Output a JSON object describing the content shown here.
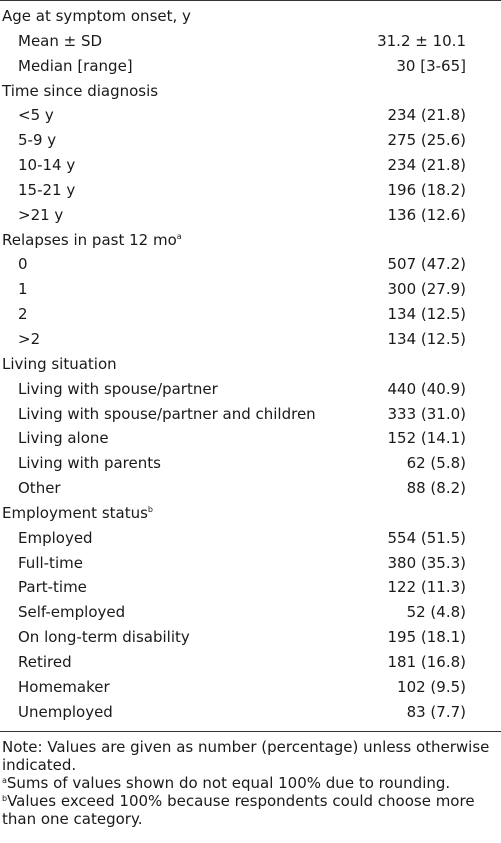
{
  "rows": [
    {
      "kind": "header",
      "label": "Age at symptom onset, y",
      "sup": "",
      "value": ""
    },
    {
      "kind": "item",
      "label": "Mean ± SD",
      "sup": "",
      "value": "31.2 ± 10.1"
    },
    {
      "kind": "item",
      "label": "Median [range]",
      "sup": "",
      "value": "30 [3-65]"
    },
    {
      "kind": "header",
      "label": "Time since diagnosis",
      "sup": "",
      "value": ""
    },
    {
      "kind": "item",
      "label": "<5 y",
      "sup": "",
      "value": "234 (21.8)"
    },
    {
      "kind": "item",
      "label": "5-9 y",
      "sup": "",
      "value": "275 (25.6)"
    },
    {
      "kind": "item",
      "label": "10-14 y",
      "sup": "",
      "value": "234 (21.8)"
    },
    {
      "kind": "item",
      "label": "15-21 y",
      "sup": "",
      "value": "196 (18.2)"
    },
    {
      "kind": "item",
      "label": ">21 y",
      "sup": "",
      "value": "136 (12.6)"
    },
    {
      "kind": "header",
      "label": "Relapses in past 12 mo",
      "sup": "a",
      "value": ""
    },
    {
      "kind": "item",
      "label": "0",
      "sup": "",
      "value": "507 (47.2)"
    },
    {
      "kind": "item",
      "label": "1",
      "sup": "",
      "value": "300 (27.9)"
    },
    {
      "kind": "item",
      "label": "2",
      "sup": "",
      "value": "134 (12.5)"
    },
    {
      "kind": "item",
      "label": ">2",
      "sup": "",
      "value": "134 (12.5)"
    },
    {
      "kind": "header",
      "label": "Living situation",
      "sup": "",
      "value": ""
    },
    {
      "kind": "item",
      "label": "Living with spouse/partner",
      "sup": "",
      "value": "440 (40.9)"
    },
    {
      "kind": "item",
      "label": "Living with spouse/partner and children",
      "sup": "",
      "value": "333 (31.0)"
    },
    {
      "kind": "item",
      "label": "Living alone",
      "sup": "",
      "value": "152 (14.1)"
    },
    {
      "kind": "item",
      "label": "Living with parents",
      "sup": "",
      "value": "62 (5.8)"
    },
    {
      "kind": "item",
      "label": "Other",
      "sup": "",
      "value": "88 (8.2)"
    },
    {
      "kind": "header",
      "label": "Employment status",
      "sup": "b",
      "value": ""
    },
    {
      "kind": "item",
      "label": "Employed",
      "sup": "",
      "value": "554 (51.5)"
    },
    {
      "kind": "item",
      "label": "Full-time",
      "sup": "",
      "value": "380 (35.3)"
    },
    {
      "kind": "item",
      "label": "Part-time",
      "sup": "",
      "value": "122 (11.3)"
    },
    {
      "kind": "item",
      "label": "Self-employed",
      "sup": "",
      "value": "52 (4.8)"
    },
    {
      "kind": "item",
      "label": "On long-term disability",
      "sup": "",
      "value": "195 (18.1)"
    },
    {
      "kind": "item",
      "label": "Retired",
      "sup": "",
      "value": "181 (16.8)"
    },
    {
      "kind": "item",
      "label": "Homemaker",
      "sup": "",
      "value": "102 (9.5)"
    },
    {
      "kind": "item",
      "label": "Unemployed",
      "sup": "",
      "value": "83 (7.7)"
    }
  ],
  "notes": {
    "note": "Note: Values are given as number (percentage) unless otherwise indicated.",
    "footnote_a_marker": "a",
    "footnote_a": "Sums of values shown do not equal 100% due to rounding.",
    "footnote_b_marker": "b",
    "footnote_b": "Values exceed 100% because respondents could choose more than one category."
  }
}
